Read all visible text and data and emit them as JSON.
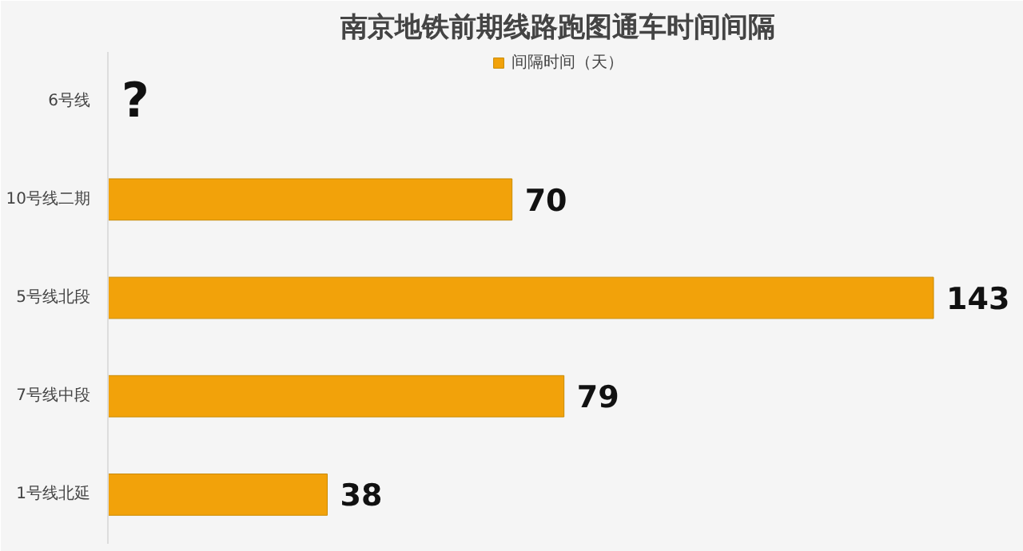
{
  "chart_data": {
    "type": "bar",
    "orientation": "horizontal",
    "title": "南京地铁前期线路跑图通车时间间隔",
    "categories": [
      "6号线",
      "10号线二期",
      "5号线北段",
      "7号线中段",
      "1号线北延"
    ],
    "series": [
      {
        "name": "间隔时间（天）",
        "color": "#f2a20a",
        "values": [
          null,
          70,
          143,
          79,
          38
        ]
      }
    ],
    "data_labels": true,
    "legend": "top",
    "tick_labels": "y",
    "annotations": [
      "?"
    ]
  }
}
